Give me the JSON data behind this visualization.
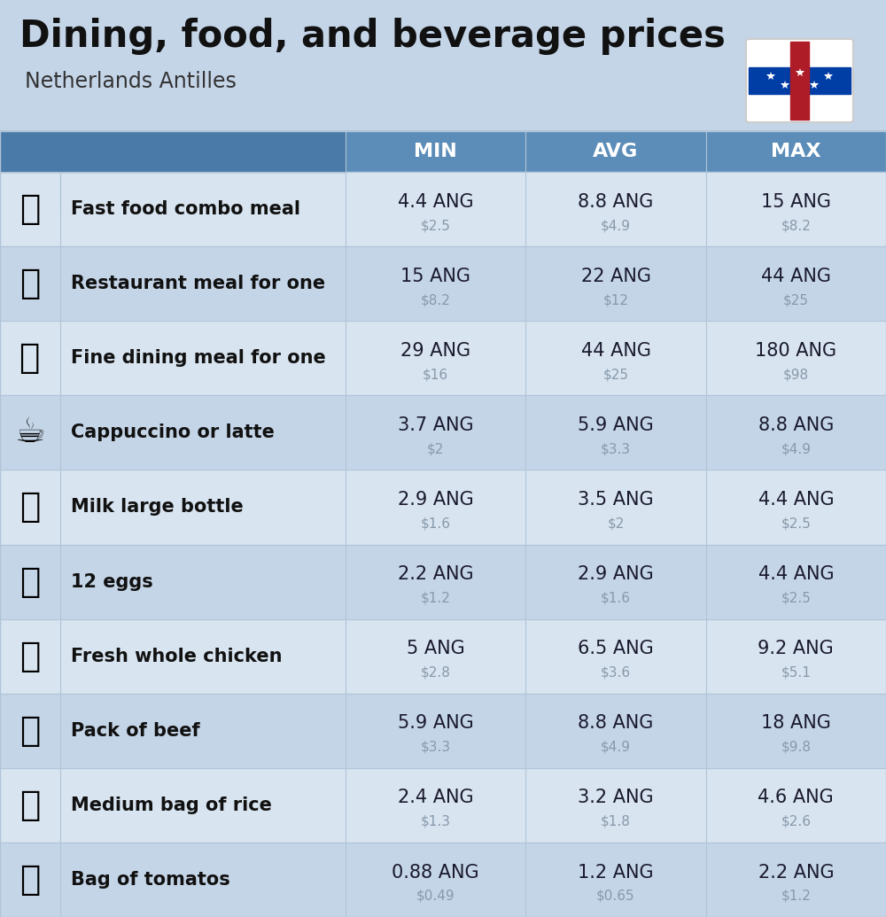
{
  "title": "Dining, food, and beverage prices",
  "subtitle": "Netherlands Antilles",
  "bg_color": "#c5d5e8",
  "header_bg_color": "#5b8db8",
  "header_icon_color": "#4a7aa8",
  "row_colors": [
    "#d8e4f0",
    "#c5d5e8"
  ],
  "header_text_color": "#ffffff",
  "main_value_color": "#1a1a2e",
  "sub_value_color": "#8899aa",
  "label_color": "#111111",
  "sep_color": "#b0c4d8",
  "col_headers": [
    "MIN",
    "AVG",
    "MAX"
  ],
  "rows": [
    {
      "label": "Fast food combo meal",
      "min_ang": "4.4 ANG",
      "min_usd": "$2.5",
      "avg_ang": "8.8 ANG",
      "avg_usd": "$4.9",
      "max_ang": "15 ANG",
      "max_usd": "$8.2"
    },
    {
      "label": "Restaurant meal for one",
      "min_ang": "15 ANG",
      "min_usd": "$8.2",
      "avg_ang": "22 ANG",
      "avg_usd": "$12",
      "max_ang": "44 ANG",
      "max_usd": "$25"
    },
    {
      "label": "Fine dining meal for one",
      "min_ang": "29 ANG",
      "min_usd": "$16",
      "avg_ang": "44 ANG",
      "avg_usd": "$25",
      "max_ang": "180 ANG",
      "max_usd": "$98"
    },
    {
      "label": "Cappuccino or latte",
      "min_ang": "3.7 ANG",
      "min_usd": "$2",
      "avg_ang": "5.9 ANG",
      "avg_usd": "$3.3",
      "max_ang": "8.8 ANG",
      "max_usd": "$4.9"
    },
    {
      "label": "Milk large bottle",
      "min_ang": "2.9 ANG",
      "min_usd": "$1.6",
      "avg_ang": "3.5 ANG",
      "avg_usd": "$2",
      "max_ang": "4.4 ANG",
      "max_usd": "$2.5"
    },
    {
      "label": "12 eggs",
      "min_ang": "2.2 ANG",
      "min_usd": "$1.2",
      "avg_ang": "2.9 ANG",
      "avg_usd": "$1.6",
      "max_ang": "4.4 ANG",
      "max_usd": "$2.5"
    },
    {
      "label": "Fresh whole chicken",
      "min_ang": "5 ANG",
      "min_usd": "$2.8",
      "avg_ang": "6.5 ANG",
      "avg_usd": "$3.6",
      "max_ang": "9.2 ANG",
      "max_usd": "$5.1"
    },
    {
      "label": "Pack of beef",
      "min_ang": "5.9 ANG",
      "min_usd": "$3.3",
      "avg_ang": "8.8 ANG",
      "avg_usd": "$4.9",
      "max_ang": "18 ANG",
      "max_usd": "$9.8"
    },
    {
      "label": "Medium bag of rice",
      "min_ang": "2.4 ANG",
      "min_usd": "$1.3",
      "avg_ang": "3.2 ANG",
      "avg_usd": "$1.8",
      "max_ang": "4.6 ANG",
      "max_usd": "$2.6"
    },
    {
      "label": "Bag of tomatos",
      "min_ang": "0.88 ANG",
      "min_usd": "$0.49",
      "avg_ang": "1.2 ANG",
      "avg_usd": "$0.65",
      "max_ang": "2.2 ANG",
      "max_usd": "$1.2"
    }
  ],
  "icon_emojis": [
    "🍔",
    "🍳",
    "🍽️",
    "☕️",
    "🥛",
    "🥚",
    "🐔",
    "🥩",
    "🍚",
    "🍅"
  ],
  "title_fontsize": 30,
  "subtitle_fontsize": 17,
  "header_fontsize": 16,
  "label_fontsize": 15,
  "value_fontsize": 15,
  "subvalue_fontsize": 11,
  "emoji_fontsize": 28
}
